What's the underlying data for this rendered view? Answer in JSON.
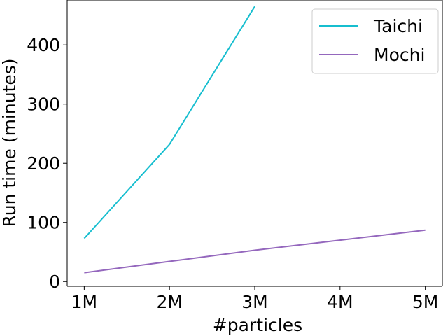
{
  "chart_data": {
    "type": "line",
    "x": [
      1,
      2,
      3,
      4,
      5
    ],
    "x_tick_labels": [
      "1M",
      "2M",
      "3M",
      "4M",
      "5M"
    ],
    "xlabel": "#particles",
    "ylabel": "Run time (minutes)",
    "ylim": [
      -8,
      476
    ],
    "xlim": [
      0.8,
      5.2
    ],
    "y_ticks": [
      0,
      100,
      200,
      300,
      400
    ],
    "grid": false,
    "legend_position": "top-right",
    "series": [
      {
        "name": "Taichi",
        "x": [
          1,
          2,
          3
        ],
        "values": [
          73,
          232,
          465
        ],
        "color": "#17becf"
      },
      {
        "name": "Mochi",
        "x": [
          1,
          2,
          3,
          4,
          5
        ],
        "values": [
          15,
          34,
          53,
          70,
          87
        ],
        "color": "#9467bd"
      }
    ]
  }
}
